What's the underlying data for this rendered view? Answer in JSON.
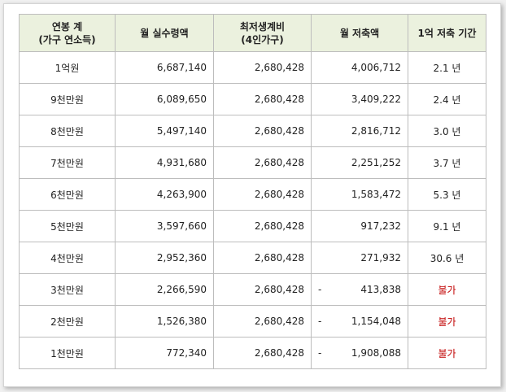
{
  "table": {
    "headers": [
      {
        "lines": [
          "연봉 계",
          "(가구 연소득)"
        ]
      },
      {
        "lines": [
          "월 실수령액"
        ]
      },
      {
        "lines": [
          "최저생계비",
          "(4인가구)"
        ]
      },
      {
        "lines": [
          "월 저축액"
        ]
      },
      {
        "lines": [
          "1억 저축 기간"
        ]
      }
    ],
    "rows": [
      {
        "income": "1억원",
        "net_monthly": "6,687,140",
        "min_living": "2,680,428",
        "savings_sign": "",
        "savings": "4,006,712",
        "years": "2.1 년",
        "impossible": false
      },
      {
        "income": "9천만원",
        "net_monthly": "6,089,650",
        "min_living": "2,680,428",
        "savings_sign": "",
        "savings": "3,409,222",
        "years": "2.4 년",
        "impossible": false
      },
      {
        "income": "8천만원",
        "net_monthly": "5,497,140",
        "min_living": "2,680,428",
        "savings_sign": "",
        "savings": "2,816,712",
        "years": "3.0 년",
        "impossible": false
      },
      {
        "income": "7천만원",
        "net_monthly": "4,931,680",
        "min_living": "2,680,428",
        "savings_sign": "",
        "savings": "2,251,252",
        "years": "3.7 년",
        "impossible": false
      },
      {
        "income": "6천만원",
        "net_monthly": "4,263,900",
        "min_living": "2,680,428",
        "savings_sign": "",
        "savings": "1,583,472",
        "years": "5.3 년",
        "impossible": false
      },
      {
        "income": "5천만원",
        "net_monthly": "3,597,660",
        "min_living": "2,680,428",
        "savings_sign": "",
        "savings": "917,232",
        "years": "9.1 년",
        "impossible": false
      },
      {
        "income": "4천만원",
        "net_monthly": "2,952,360",
        "min_living": "2,680,428",
        "savings_sign": "",
        "savings": "271,932",
        "years": "30.6 년",
        "impossible": false
      },
      {
        "income": "3천만원",
        "net_monthly": "2,266,590",
        "min_living": "2,680,428",
        "savings_sign": "-",
        "savings": "413,838",
        "years": "불가",
        "impossible": true
      },
      {
        "income": "2천만원",
        "net_monthly": "1,526,380",
        "min_living": "2,680,428",
        "savings_sign": "-",
        "savings": "1,154,048",
        "years": "불가",
        "impossible": true
      },
      {
        "income": "1천만원",
        "net_monthly": "772,340",
        "min_living": "2,680,428",
        "savings_sign": "-",
        "savings": "1,908,088",
        "years": "불가",
        "impossible": true
      }
    ]
  },
  "colors": {
    "header_bg": "#ebf1de",
    "impossible_text": "#c00000",
    "grid": "#bdbdbd"
  }
}
